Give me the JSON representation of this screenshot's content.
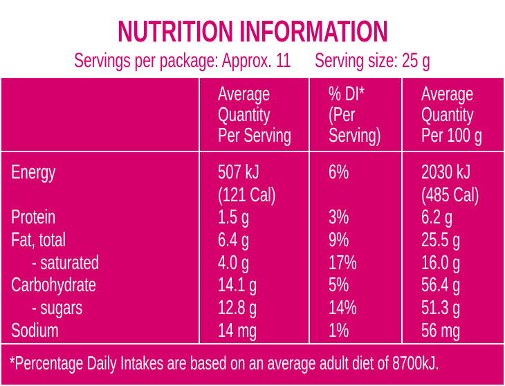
{
  "title": "NUTRITION INFORMATION",
  "servings_per_package": "Servings per package: Approx. 11",
  "serving_size": "Serving size: 25 g",
  "headers": [
    [
      "Average",
      "Quantity",
      "Per Serving"
    ],
    [
      "% DI*",
      "(Per",
      "Serving)"
    ],
    [
      "Average",
      "Quantity",
      "Per 100 g"
    ]
  ],
  "rows": [
    {
      "name": "Energy",
      "indent": false,
      "per_serving": [
        "507 kJ",
        "(121 Cal)"
      ],
      "di": "6%",
      "per_100g": [
        "2030 kJ",
        "(485 Cal)"
      ]
    },
    {
      "name": "Protein",
      "indent": false,
      "per_serving": [
        "1.5 g"
      ],
      "di": "3%",
      "per_100g": [
        "6.2 g"
      ]
    },
    {
      "name": "Fat, total",
      "indent": false,
      "per_serving": [
        "6.4 g"
      ],
      "di": "9%",
      "per_100g": [
        "25.5 g"
      ]
    },
    {
      "name": "- saturated",
      "indent": true,
      "per_serving": [
        "4.0 g"
      ],
      "di": "17%",
      "per_100g": [
        "16.0 g"
      ]
    },
    {
      "name": "Carbohydrate",
      "indent": false,
      "per_serving": [
        "14.1 g"
      ],
      "di": "5%",
      "per_100g": [
        "56.4 g"
      ]
    },
    {
      "name": "- sugars",
      "indent": true,
      "per_serving": [
        "12.8 g"
      ],
      "di": "14%",
      "per_100g": [
        "51.3 g"
      ]
    },
    {
      "name": "Sodium",
      "indent": false,
      "per_serving": [
        "14 mg"
      ],
      "di": "1%",
      "per_100g": [
        "56 mg"
      ]
    }
  ],
  "footnote": "*Percentage Daily Intakes are based on an average adult diet of 8700kJ.",
  "colors": {
    "brand": "#d6006d",
    "background": "#ffffff"
  }
}
